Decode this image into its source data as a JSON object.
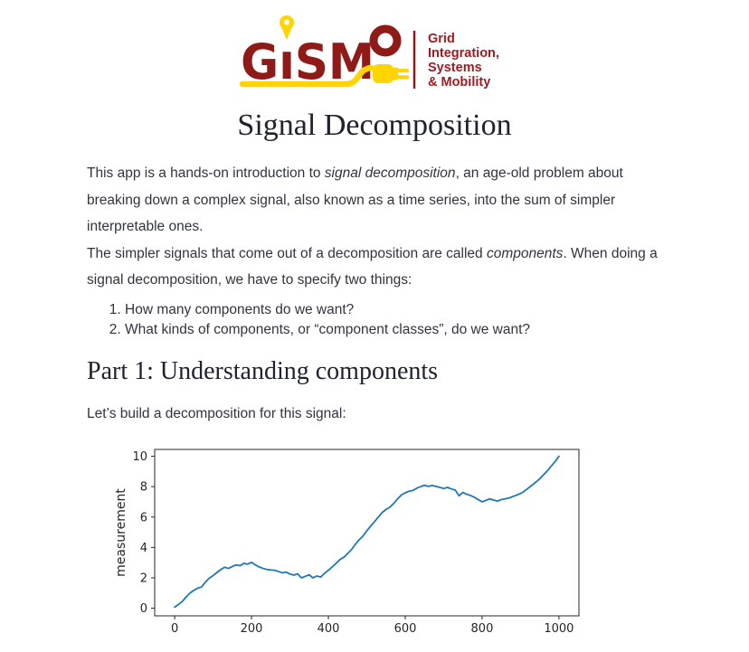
{
  "logo": {
    "wordmark_main": "GıSM",
    "wordmark_o": "O",
    "tagline": [
      "Grid",
      "Integration,",
      "Systems",
      "& Mobility"
    ],
    "colors": {
      "maroon": "#8e1b17",
      "red_text": "#9e1c20",
      "yellow": "#ffd400"
    }
  },
  "title": "Signal Decomposition",
  "paragraphs": {
    "intro": [
      {
        "text": "This app is a hands-on introduction to "
      },
      {
        "text": "signal decomposition",
        "italic": true
      },
      {
        "text": ", an age-old problem about breaking down a complex signal, also known as a time series, into the sum of simpler interpretable ones."
      }
    ],
    "components": [
      {
        "text": "The simpler signals that come out of a decomposition are called "
      },
      {
        "text": "components",
        "italic": true
      },
      {
        "text": ". When doing a signal decomposition, we have to specify two things:"
      }
    ]
  },
  "list": {
    "items": [
      "How many components do we want?",
      "What kinds of components, or “component classes”, do we want?"
    ]
  },
  "part1": {
    "heading": "Part 1: Understanding components",
    "intro": "Let’s build a decomposition for this signal:"
  },
  "chart_data": {
    "type": "line",
    "title": "",
    "xlabel": "",
    "ylabel": "measurement",
    "xlim": [
      -52,
      1052
    ],
    "ylim": [
      -0.5,
      10.45
    ],
    "xticks": [
      0,
      200,
      400,
      600,
      800,
      1000
    ],
    "yticks": [
      0,
      2,
      4,
      6,
      8,
      10
    ],
    "grid": false,
    "legend": "none",
    "line_color": "#1f77b4",
    "x_start": 0,
    "x_step": 10,
    "y": [
      0.07,
      0.25,
      0.45,
      0.75,
      1.0,
      1.18,
      1.32,
      1.4,
      1.72,
      1.98,
      2.15,
      2.35,
      2.55,
      2.7,
      2.62,
      2.75,
      2.85,
      2.8,
      2.95,
      2.9,
      3.02,
      2.85,
      2.72,
      2.62,
      2.55,
      2.52,
      2.5,
      2.42,
      2.33,
      2.38,
      2.25,
      2.18,
      2.26,
      2.0,
      2.1,
      2.2,
      2.0,
      2.12,
      2.05,
      2.3,
      2.5,
      2.72,
      2.95,
      3.2,
      3.35,
      3.6,
      3.85,
      4.2,
      4.5,
      4.75,
      5.1,
      5.4,
      5.7,
      6.0,
      6.3,
      6.5,
      6.65,
      6.9,
      7.2,
      7.45,
      7.6,
      7.7,
      7.75,
      7.9,
      8.0,
      8.1,
      8.02,
      8.08,
      8.02,
      7.95,
      7.88,
      7.95,
      7.85,
      7.78,
      7.4,
      7.62,
      7.5,
      7.42,
      7.3,
      7.15,
      7.0,
      7.1,
      7.2,
      7.12,
      7.05,
      7.15,
      7.2,
      7.25,
      7.35,
      7.45,
      7.55,
      7.7,
      7.9,
      8.1,
      8.3,
      8.52,
      8.78,
      9.05,
      9.35,
      9.65,
      10.0
    ]
  }
}
